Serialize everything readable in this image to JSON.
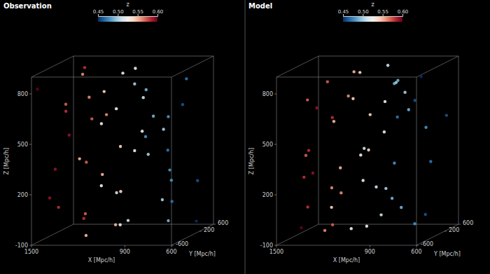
{
  "chart_data": [
    {
      "type": "scatter3d",
      "title": "Observation",
      "x_label": "X [Mpc/h]",
      "y_label": "Y [Mpc/h]",
      "z_label": "Z [Mpc/h]",
      "xlim": [
        600,
        1500
      ],
      "ylim": [
        -600,
        600
      ],
      "zlim": [
        -100,
        900
      ],
      "xticks": [
        600,
        900,
        1500
      ],
      "yticks": [
        -600,
        200,
        600
      ],
      "zticks": [
        -100,
        200,
        500,
        800
      ],
      "x": [
        1480,
        1450,
        1420,
        1400,
        1380,
        1350,
        1320,
        1300,
        1270,
        1250,
        1220,
        1200,
        1180,
        1150,
        1120,
        1100,
        1080,
        1050,
        1020,
        1000,
        980,
        950,
        920,
        900,
        880,
        850,
        820,
        800,
        780,
        750,
        720,
        700,
        680,
        650,
        620,
        1460,
        1410,
        1360,
        1310,
        1260,
        1210,
        1160,
        1110,
        1060,
        1010,
        960,
        910,
        860,
        810,
        760
      ],
      "y": [
        -520,
        -300,
        120,
        450,
        -150,
        300,
        -420,
        50,
        520,
        -250,
        180,
        -560,
        380,
        -80,
        260,
        -380,
        480,
        10,
        -200,
        340,
        -480,
        150,
        560,
        -320,
        -20,
        420,
        -140,
        240,
        -540,
        80,
        360,
        -260,
        500,
        -60,
        200,
        -100,
        520,
        -450,
        280,
        -20,
        -330,
        430,
        90,
        -560,
        190,
        -240,
        550,
        -170,
        330,
        20
      ],
      "z": [
        820,
        150,
        480,
        -50,
        650,
        300,
        720,
        20,
        560,
        880,
        240,
        410,
        -80,
        760,
        130,
        600,
        350,
        860,
        -20,
        480,
        200,
        700,
        50,
        830,
        380,
        -60,
        620,
        260,
        540,
        90,
        790,
        430,
        170,
        680,
        -40,
        300,
        840,
        110,
        560,
        720,
        -70,
        380,
        640,
        250,
        870,
        10,
        470,
        780,
        190,
        600
      ],
      "redshift": [
        0.6,
        0.59,
        0.59,
        0.58,
        0.58,
        0.57,
        0.57,
        0.57,
        0.56,
        0.56,
        0.55,
        0.55,
        0.55,
        0.54,
        0.54,
        0.53,
        0.53,
        0.52,
        0.52,
        0.52,
        0.51,
        0.51,
        0.5,
        0.5,
        0.5,
        0.49,
        0.49,
        0.48,
        0.48,
        0.47,
        0.47,
        0.47,
        0.46,
        0.46,
        0.45,
        0.59,
        0.58,
        0.58,
        0.57,
        0.56,
        0.55,
        0.54,
        0.53,
        0.53,
        0.52,
        0.51,
        0.5,
        0.49,
        0.48,
        0.48
      ],
      "colorbar": {
        "label": "z",
        "range": [
          0.45,
          0.6
        ],
        "ticks": [
          0.45,
          {
            "value": 0.5,
            "label": "0.50"
          },
          0.55,
          {
            "value": 0.6,
            "label": "0.60"
          }
        ]
      }
    },
    {
      "type": "scatter3d",
      "title": "Model",
      "x_label": "X [Mpc/h]",
      "y_label": "Y [Mpc/h]",
      "z_label": "Z [Mpc/h]",
      "xlim": [
        600,
        1500
      ],
      "ylim": [
        -600,
        600
      ],
      "zlim": [
        -100,
        900
      ],
      "xticks": [
        600,
        900,
        1500
      ],
      "yticks": [
        -600,
        200,
        600
      ],
      "zticks": [
        -100,
        200,
        500,
        800
      ],
      "x": [
        1480,
        1450,
        1420,
        1400,
        1380,
        1350,
        1320,
        1300,
        1270,
        1250,
        1220,
        1200,
        1180,
        1150,
        1120,
        1100,
        1080,
        1050,
        1020,
        1000,
        980,
        950,
        920,
        900,
        880,
        850,
        820,
        800,
        780,
        750,
        720,
        700,
        680,
        650,
        620,
        1460,
        1410,
        1360,
        1310,
        1260,
        1210,
        1160,
        1110,
        1060,
        1010,
        960,
        910,
        860,
        810,
        760
      ],
      "y": [
        20,
        330,
        -170,
        550,
        -240,
        190,
        -560,
        90,
        430,
        -330,
        -20,
        280,
        -450,
        520,
        -100,
        200,
        -60,
        500,
        -260,
        360,
        80,
        -540,
        240,
        -140,
        420,
        -20,
        -320,
        560,
        150,
        -480,
        340,
        -200,
        10,
        480,
        -380,
        260,
        -80,
        380,
        -560,
        180,
        -250,
        520,
        50,
        -420,
        300,
        -150,
        450,
        120,
        -300,
        -520
      ],
      "z": [
        -60,
        620,
        260,
        540,
        90,
        790,
        430,
        170,
        680,
        -40,
        300,
        840,
        110,
        560,
        720,
        -70,
        380,
        640,
        250,
        870,
        10,
        470,
        780,
        190,
        600,
        820,
        150,
        480,
        -50,
        650,
        300,
        720,
        20,
        560,
        880,
        240,
        410,
        -80,
        760,
        130,
        600,
        350,
        860,
        -20,
        480,
        200,
        700,
        50,
        830,
        380
      ],
      "redshift": [
        0.6,
        0.59,
        0.58,
        0.58,
        0.58,
        0.57,
        0.57,
        0.56,
        0.56,
        0.56,
        0.55,
        0.55,
        0.54,
        0.54,
        0.54,
        0.53,
        0.53,
        0.52,
        0.52,
        0.51,
        0.51,
        0.51,
        0.5,
        0.5,
        0.49,
        0.49,
        0.49,
        0.48,
        0.48,
        0.47,
        0.47,
        0.46,
        0.46,
        0.46,
        0.45,
        0.59,
        0.58,
        0.57,
        0.57,
        0.56,
        0.55,
        0.54,
        0.54,
        0.53,
        0.52,
        0.51,
        0.5,
        0.49,
        0.49,
        0.48
      ],
      "colorbar": {
        "label": "z",
        "range": [
          0.45,
          0.6
        ],
        "ticks": [
          0.45,
          {
            "value": 0.5,
            "label": "0.50"
          },
          0.55,
          {
            "value": 0.6,
            "label": "0.60"
          }
        ]
      }
    }
  ]
}
